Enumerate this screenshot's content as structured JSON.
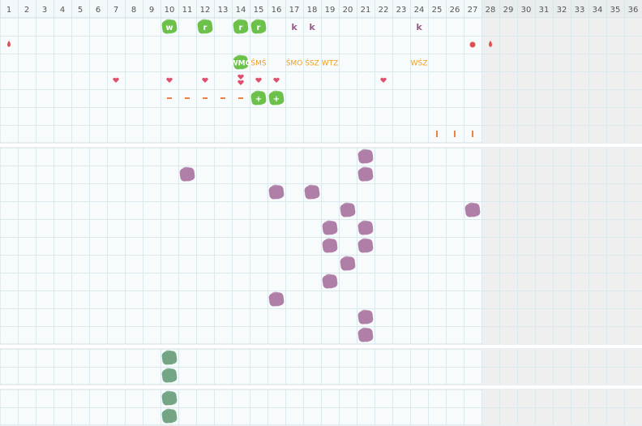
{
  "header": {
    "days": [
      "1",
      "2",
      "3",
      "4",
      "5",
      "6",
      "7",
      "8",
      "9",
      "10",
      "11",
      "12",
      "13",
      "14",
      "15",
      "16",
      "17",
      "18",
      "19",
      "20",
      "21",
      "22",
      "23",
      "24",
      "25",
      "26",
      "27",
      "28",
      "29",
      "30",
      "31",
      "32",
      "33",
      "34",
      "35",
      "36"
    ]
  },
  "inactive_from": 28,
  "sections": [
    {
      "rows": [
        {
          "cells": [
            {
              "day": 10,
              "icon": "green",
              "label": "w"
            },
            {
              "day": 12,
              "icon": "green",
              "label": "r"
            },
            {
              "day": 14,
              "icon": "green",
              "label": "r"
            },
            {
              "day": 15,
              "icon": "green",
              "label": "r"
            },
            {
              "day": 17,
              "icon": "text-purple",
              "label": "k"
            },
            {
              "day": 18,
              "icon": "text-purple",
              "label": "k"
            },
            {
              "day": 24,
              "icon": "text-purple",
              "label": "k"
            }
          ]
        },
        {
          "cells": [
            {
              "day": 1,
              "icon": "drop"
            },
            {
              "day": 27,
              "icon": "dot"
            },
            {
              "day": 28,
              "icon": "drop"
            }
          ]
        },
        {
          "cells": [
            {
              "day": 14,
              "icon": "green",
              "label": "WMO"
            },
            {
              "day": 15,
              "icon": "text-orange",
              "label": "ŚMŚ"
            },
            {
              "day": 17,
              "icon": "text-orange",
              "label": "ŚMO"
            },
            {
              "day": 18,
              "icon": "text-orange",
              "label": "ŚSZ"
            },
            {
              "day": 19,
              "icon": "text-orange",
              "label": "WTZ"
            },
            {
              "day": 24,
              "icon": "text-orange",
              "label": "WŚZ"
            }
          ]
        },
        {
          "cells": [
            {
              "day": 7,
              "icon": "heart"
            },
            {
              "day": 10,
              "icon": "heart"
            },
            {
              "day": 12,
              "icon": "heart"
            },
            {
              "day": 14,
              "icon": "heart2"
            },
            {
              "day": 15,
              "icon": "heart"
            },
            {
              "day": 16,
              "icon": "heart"
            },
            {
              "day": 22,
              "icon": "heart"
            }
          ]
        },
        {
          "cells": [
            {
              "day": 10,
              "icon": "dash"
            },
            {
              "day": 11,
              "icon": "dash"
            },
            {
              "day": 12,
              "icon": "dash"
            },
            {
              "day": 13,
              "icon": "dash"
            },
            {
              "day": 14,
              "icon": "dash"
            },
            {
              "day": 15,
              "icon": "green",
              "label": "+"
            },
            {
              "day": 16,
              "icon": "green",
              "label": "+"
            }
          ]
        },
        {
          "cells": []
        },
        {
          "cells": [
            {
              "day": 25,
              "icon": "bar"
            },
            {
              "day": 26,
              "icon": "bar"
            },
            {
              "day": 27,
              "icon": "bar"
            }
          ]
        }
      ]
    },
    {
      "rows": [
        {
          "cells": [
            {
              "day": 21,
              "icon": "purple"
            }
          ]
        },
        {
          "cells": [
            {
              "day": 11,
              "icon": "purple"
            },
            {
              "day": 21,
              "icon": "purple"
            }
          ]
        },
        {
          "cells": [
            {
              "day": 16,
              "icon": "purple"
            },
            {
              "day": 18,
              "icon": "purple"
            }
          ]
        },
        {
          "cells": [
            {
              "day": 20,
              "icon": "purple"
            },
            {
              "day": 27,
              "icon": "purple"
            }
          ]
        },
        {
          "cells": [
            {
              "day": 19,
              "icon": "purple"
            },
            {
              "day": 21,
              "icon": "purple"
            }
          ]
        },
        {
          "cells": [
            {
              "day": 19,
              "icon": "purple"
            },
            {
              "day": 21,
              "icon": "purple"
            }
          ]
        },
        {
          "cells": [
            {
              "day": 20,
              "icon": "purple"
            }
          ]
        },
        {
          "cells": [
            {
              "day": 19,
              "icon": "purple"
            }
          ]
        },
        {
          "cells": [
            {
              "day": 16,
              "icon": "purple"
            }
          ]
        },
        {
          "cells": [
            {
              "day": 21,
              "icon": "purple"
            }
          ]
        },
        {
          "cells": [
            {
              "day": 21,
              "icon": "purple"
            }
          ]
        }
      ]
    },
    {
      "rows": [
        {
          "cells": [
            {
              "day": 10,
              "icon": "teal"
            }
          ]
        },
        {
          "cells": [
            {
              "day": 10,
              "icon": "teal"
            }
          ]
        }
      ]
    },
    {
      "rows": [
        {
          "cells": [
            {
              "day": 10,
              "icon": "teal"
            }
          ]
        },
        {
          "cells": [
            {
              "day": 10,
              "icon": "teal"
            }
          ]
        }
      ]
    }
  ]
}
